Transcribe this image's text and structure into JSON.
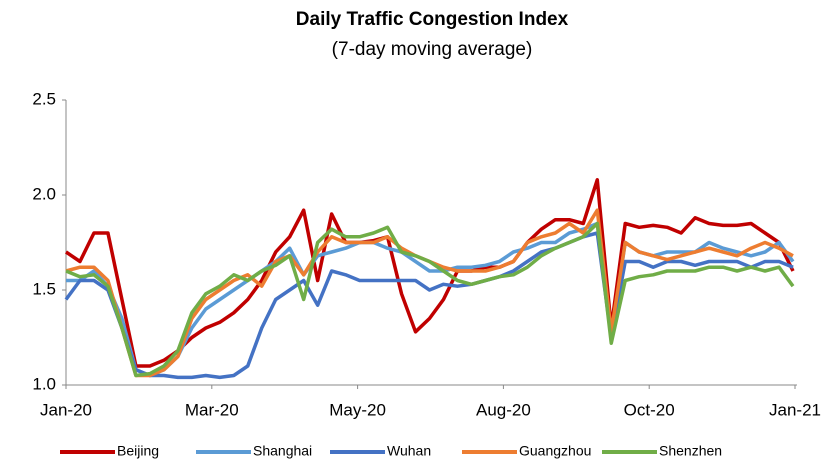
{
  "chart_data": {
    "type": "line",
    "title": "Daily Traffic Congestion Index",
    "subtitle": "(7-day moving average)",
    "x": [
      0,
      7,
      14,
      21,
      28,
      35,
      42,
      49,
      56,
      63,
      70,
      77,
      84,
      91,
      98,
      105,
      112,
      119,
      126,
      133,
      140,
      147,
      154,
      161,
      168,
      175,
      182,
      189,
      196,
      203,
      210,
      217,
      224,
      231,
      238,
      245,
      252,
      259,
      266,
      273,
      280,
      287,
      294,
      301,
      308,
      315,
      322,
      329,
      336,
      343,
      350,
      357,
      364
    ],
    "xlim": [
      0,
      366
    ],
    "xticks": [
      {
        "value": 0,
        "label": "Jan-20"
      },
      {
        "value": 73,
        "label": "Mar-20"
      },
      {
        "value": 146,
        "label": "May-20"
      },
      {
        "value": 219,
        "label": "Aug-20"
      },
      {
        "value": 292,
        "label": "Oct-20"
      },
      {
        "value": 365,
        "label": "Jan-21"
      }
    ],
    "ylim": [
      1,
      2.5
    ],
    "yticks": [
      {
        "value": 1,
        "label": "1.0"
      },
      1.5,
      {
        "value": 2,
        "label": "2.0"
      },
      2.5
    ],
    "grid": false,
    "legend": "bottom",
    "series": [
      {
        "name": "Beijing",
        "color": "#c00000",
        "values": [
          1.7,
          1.65,
          1.8,
          1.8,
          1.45,
          1.1,
          1.1,
          1.13,
          1.18,
          1.25,
          1.3,
          1.33,
          1.38,
          1.45,
          1.55,
          1.7,
          1.78,
          1.92,
          1.55,
          1.9,
          1.75,
          1.75,
          1.76,
          1.78,
          1.48,
          1.28,
          1.35,
          1.45,
          1.6,
          1.6,
          1.62,
          1.62,
          1.65,
          1.75,
          1.82,
          1.87,
          1.87,
          1.85,
          2.08,
          1.3,
          1.85,
          1.83,
          1.84,
          1.83,
          1.8,
          1.88,
          1.85,
          1.84,
          1.84,
          1.85,
          1.8,
          1.75,
          1.6
        ]
      },
      {
        "name": "Shanghai",
        "color": "#5b9bd5",
        "values": [
          1.55,
          1.55,
          1.6,
          1.52,
          1.35,
          1.08,
          1.05,
          1.08,
          1.15,
          1.3,
          1.4,
          1.45,
          1.5,
          1.55,
          1.6,
          1.65,
          1.72,
          1.58,
          1.68,
          1.7,
          1.72,
          1.75,
          1.75,
          1.72,
          1.7,
          1.65,
          1.6,
          1.6,
          1.62,
          1.62,
          1.63,
          1.65,
          1.7,
          1.72,
          1.75,
          1.75,
          1.8,
          1.82,
          1.85,
          1.25,
          1.75,
          1.7,
          1.68,
          1.7,
          1.7,
          1.7,
          1.75,
          1.72,
          1.7,
          1.68,
          1.7,
          1.75,
          1.65
        ]
      },
      {
        "name": "Wuhan",
        "color": "#4472c4",
        "values": [
          1.45,
          1.55,
          1.55,
          1.5,
          1.3,
          1.08,
          1.05,
          1.05,
          1.04,
          1.04,
          1.05,
          1.04,
          1.05,
          1.1,
          1.3,
          1.45,
          1.5,
          1.55,
          1.42,
          1.6,
          1.58,
          1.55,
          1.55,
          1.55,
          1.55,
          1.55,
          1.5,
          1.53,
          1.52,
          1.53,
          1.55,
          1.57,
          1.6,
          1.65,
          1.7,
          1.72,
          1.75,
          1.78,
          1.8,
          1.25,
          1.65,
          1.65,
          1.62,
          1.65,
          1.65,
          1.63,
          1.65,
          1.65,
          1.65,
          1.62,
          1.65,
          1.65,
          1.62
        ]
      },
      {
        "name": "Guangzhou",
        "color": "#ed7d31",
        "values": [
          1.6,
          1.62,
          1.62,
          1.55,
          1.3,
          1.05,
          1.05,
          1.08,
          1.15,
          1.35,
          1.45,
          1.5,
          1.55,
          1.58,
          1.52,
          1.65,
          1.68,
          1.58,
          1.7,
          1.78,
          1.75,
          1.75,
          1.75,
          1.78,
          1.72,
          1.68,
          1.65,
          1.62,
          1.6,
          1.6,
          1.6,
          1.62,
          1.65,
          1.75,
          1.78,
          1.8,
          1.85,
          1.8,
          1.92,
          1.28,
          1.75,
          1.7,
          1.68,
          1.66,
          1.68,
          1.7,
          1.72,
          1.7,
          1.68,
          1.72,
          1.75,
          1.72,
          1.68
        ]
      },
      {
        "name": "Shenzhen",
        "color": "#70ad47",
        "values": [
          1.6,
          1.57,
          1.58,
          1.52,
          1.3,
          1.05,
          1.06,
          1.1,
          1.18,
          1.38,
          1.48,
          1.52,
          1.58,
          1.55,
          1.6,
          1.63,
          1.68,
          1.45,
          1.75,
          1.82,
          1.78,
          1.78,
          1.8,
          1.83,
          1.7,
          1.68,
          1.65,
          1.6,
          1.55,
          1.53,
          1.55,
          1.57,
          1.58,
          1.62,
          1.68,
          1.72,
          1.75,
          1.78,
          1.85,
          1.22,
          1.55,
          1.57,
          1.58,
          1.6,
          1.6,
          1.6,
          1.62,
          1.62,
          1.6,
          1.62,
          1.6,
          1.62,
          1.52
        ]
      }
    ]
  }
}
